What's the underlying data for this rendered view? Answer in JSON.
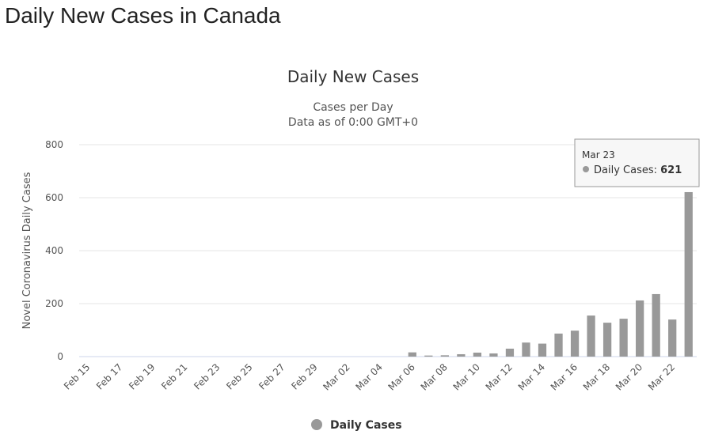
{
  "page": {
    "heading": "Daily New Cases in Canada"
  },
  "chart_data": {
    "type": "bar",
    "title": "Daily New Cases",
    "subtitle_lines": [
      "Cases per Day",
      "Data as of 0:00 GMT+0"
    ],
    "xlabel": "",
    "ylabel": "Novel Coronavirus Daily Cases",
    "ylim": [
      0,
      800
    ],
    "yticks": [
      0,
      200,
      400,
      600,
      800
    ],
    "grid": true,
    "legend_position": "bottom-center",
    "bar_color": "#999999",
    "categories": [
      "Feb 15",
      "Feb 16",
      "Feb 17",
      "Feb 18",
      "Feb 19",
      "Feb 20",
      "Feb 21",
      "Feb 22",
      "Feb 23",
      "Feb 24",
      "Feb 25",
      "Feb 26",
      "Feb 27",
      "Feb 28",
      "Feb 29",
      "Mar 01",
      "Mar 02",
      "Mar 03",
      "Mar 04",
      "Mar 05",
      "Mar 06",
      "Mar 07",
      "Mar 08",
      "Mar 09",
      "Mar 10",
      "Mar 11",
      "Mar 12",
      "Mar 13",
      "Mar 14",
      "Mar 15",
      "Mar 16",
      "Mar 17",
      "Mar 18",
      "Mar 19",
      "Mar 20",
      "Mar 21",
      "Mar 22",
      "Mar 23"
    ],
    "x_tick_labels": [
      "Feb 15",
      "Feb 17",
      "Feb 19",
      "Feb 21",
      "Feb 23",
      "Feb 25",
      "Feb 27",
      "Feb 29",
      "Mar 02",
      "Mar 04",
      "Mar 06",
      "Mar 08",
      "Mar 10",
      "Mar 12",
      "Mar 14",
      "Mar 16",
      "Mar 18",
      "Mar 20",
      "Mar 22"
    ],
    "series": [
      {
        "name": "Daily Cases",
        "values": [
          0,
          0,
          0,
          0,
          0,
          0,
          0,
          0,
          0,
          0,
          0,
          0,
          0,
          0,
          0,
          0,
          0,
          0,
          0,
          0,
          16,
          4,
          5,
          9,
          15,
          12,
          30,
          53,
          49,
          87,
          98,
          155,
          128,
          143,
          212,
          236,
          140,
          621
        ]
      }
    ],
    "tooltip": {
      "date": "Mar 23",
      "series_label": "Daily Cases: ",
      "value": "621"
    }
  }
}
